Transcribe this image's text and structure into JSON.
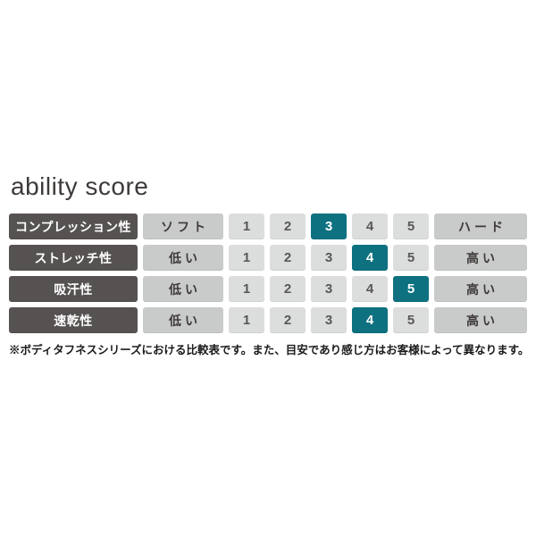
{
  "header": {
    "title": "ability score"
  },
  "chart_data": {
    "type": "table",
    "title": "ability score",
    "scale": [
      1,
      2,
      3,
      4,
      5
    ],
    "rows": [
      {
        "label": "コンプレッション性",
        "min_label": "ソフト",
        "max_label": "ハード",
        "value": 3
      },
      {
        "label": "ストレッチ性",
        "min_label": "低い",
        "max_label": "高い",
        "value": 4
      },
      {
        "label": "吸汗性",
        "min_label": "低い",
        "max_label": "高い",
        "value": 5
      },
      {
        "label": "速乾性",
        "min_label": "低い",
        "max_label": "高い",
        "value": 4
      }
    ],
    "footnote": "※ボディタフネスシリーズにおける比較表です。また、目安であり感じ方はお客様によって異なります。"
  },
  "colors": {
    "label_bg": "#575252",
    "label_text": "#ffffff",
    "qualifier_bg": "#c9caca",
    "qualifier_text": "#3e3a39",
    "scale_bg": "#dcdddd",
    "scale_text": "#595757",
    "highlight_bg": "#0e7180",
    "highlight_text": "#ffffff"
  }
}
